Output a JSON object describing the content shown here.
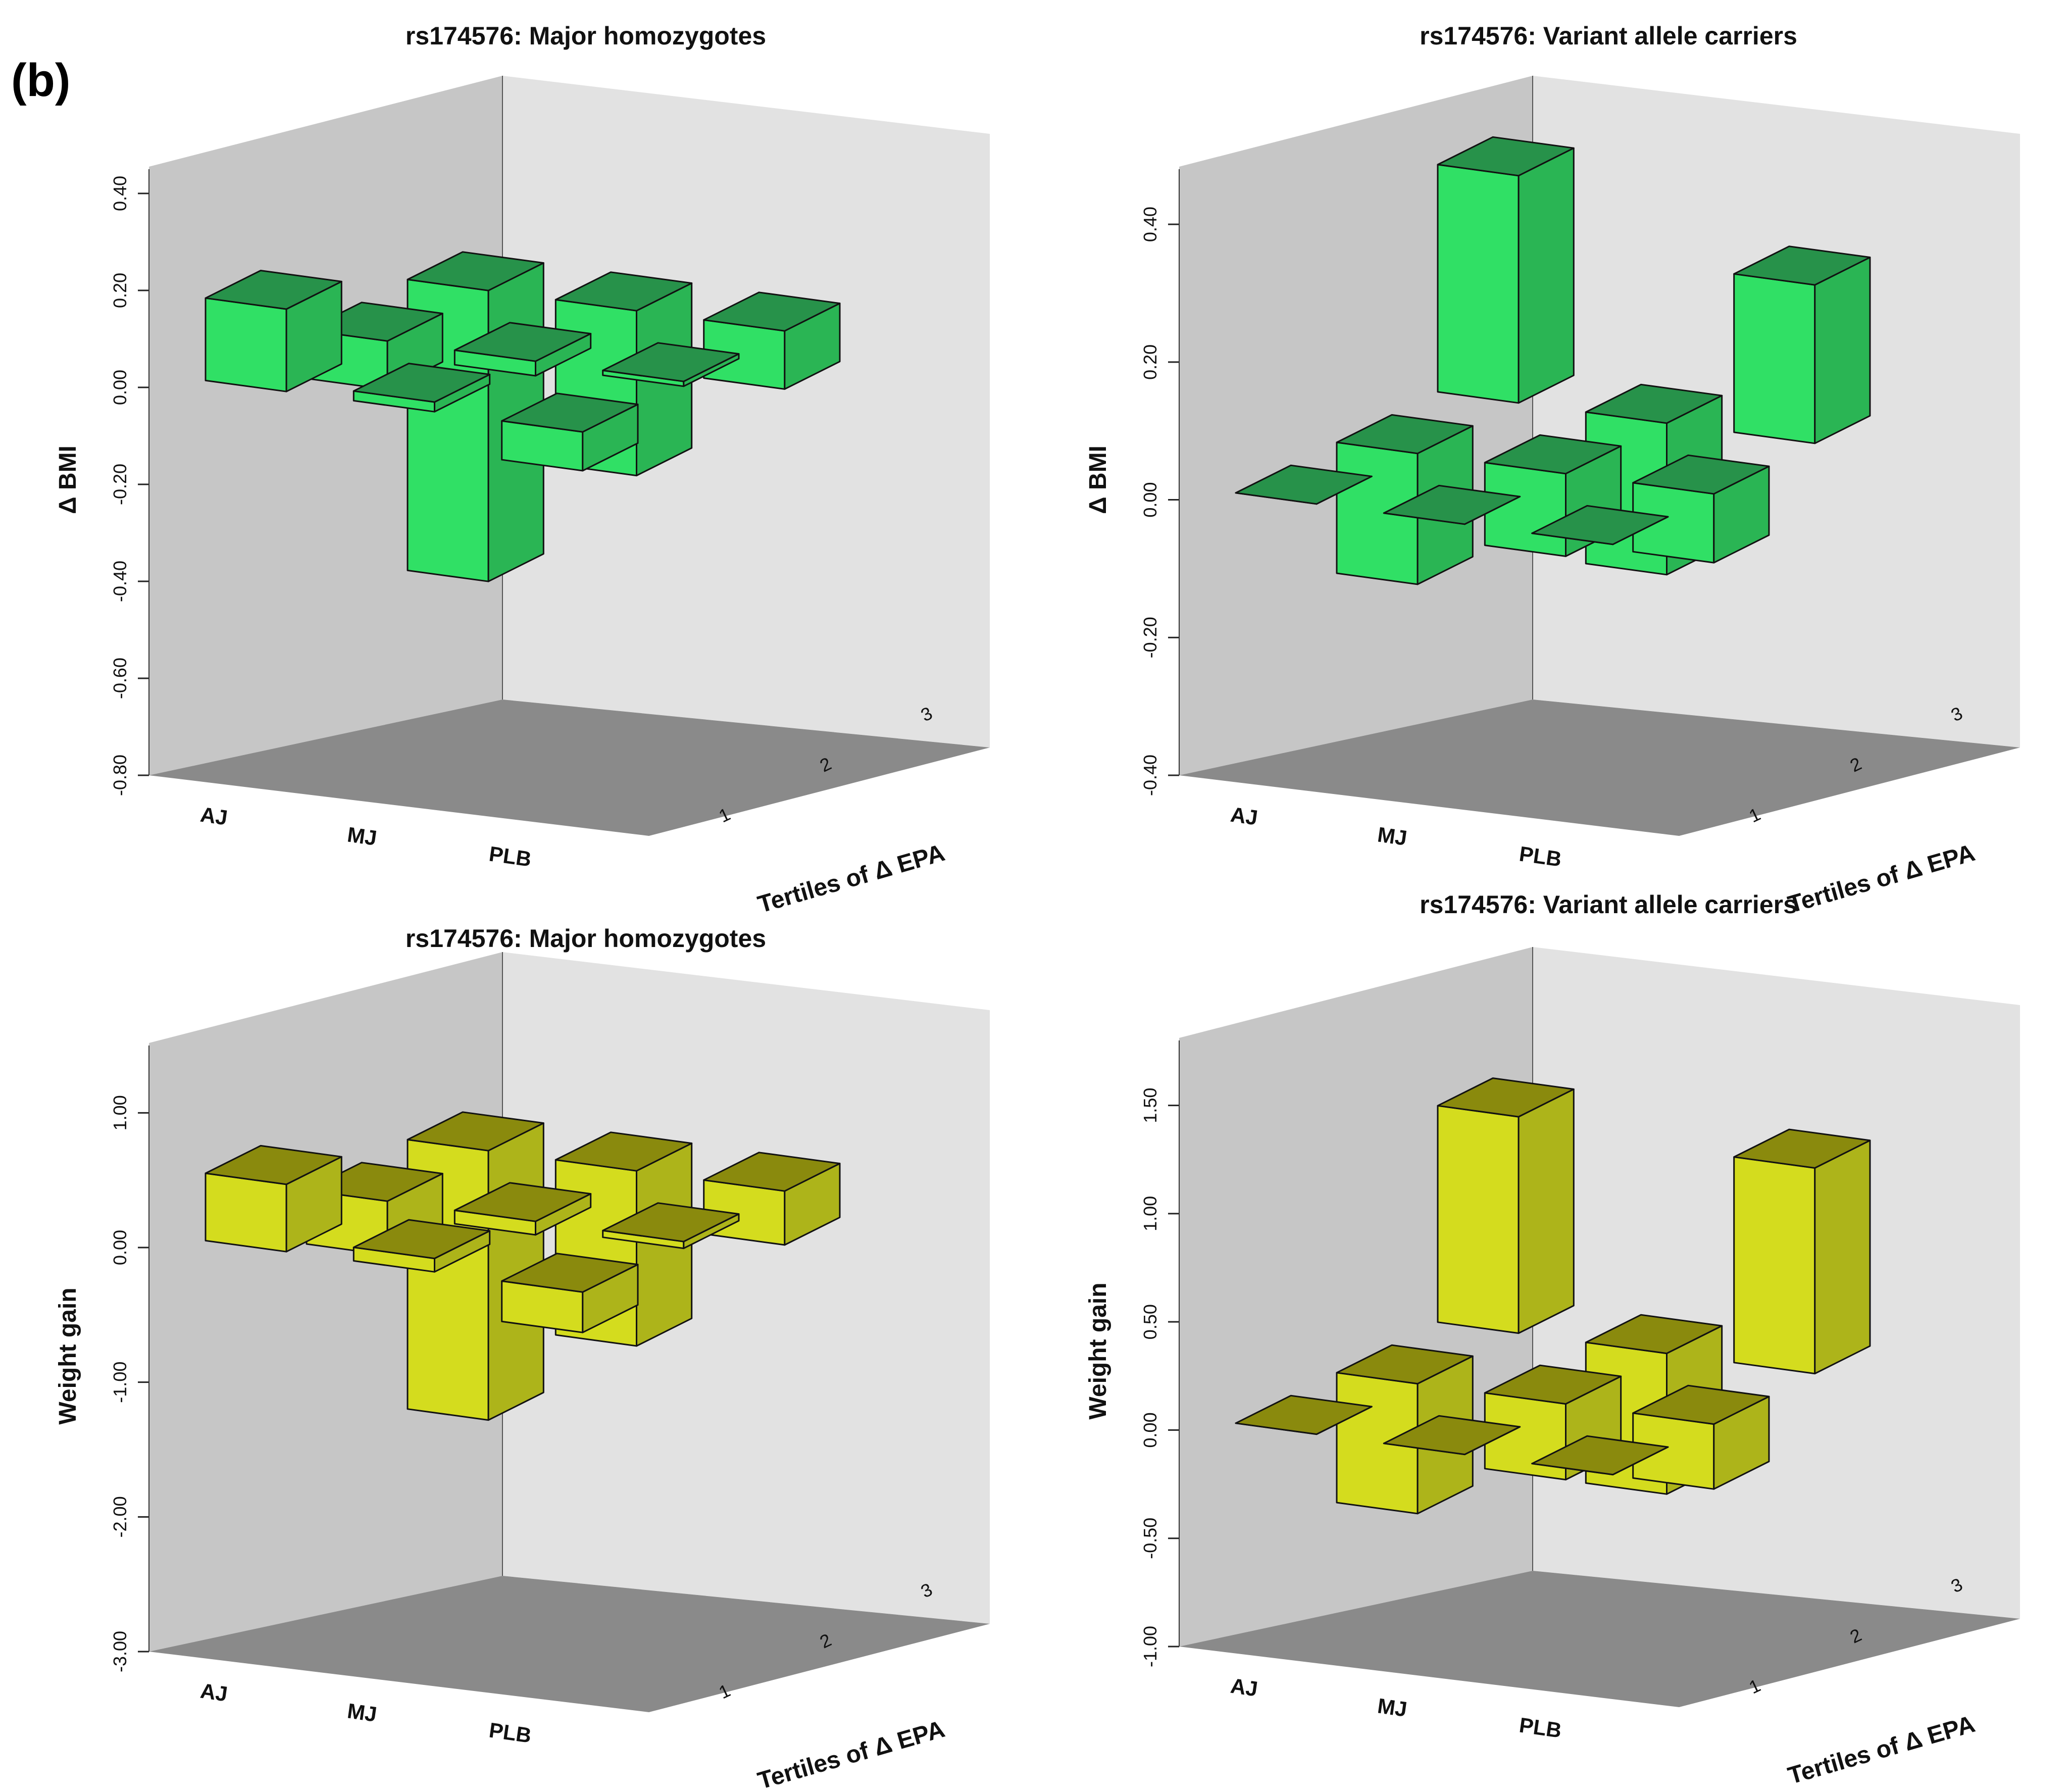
{
  "figure": {
    "panel_label": "(b)"
  },
  "colors": {
    "wall_back": "#c6c6c6",
    "wall_side": "#e2e2e2",
    "floor": "#8a8a8a",
    "green_top": "#27924a",
    "green_front": "#30e065",
    "green_side": "#2ab554",
    "yellow_top": "#8a8a0d",
    "yellow_front": "#d4dc1e",
    "yellow_side": "#adb41a"
  },
  "chart_data": [
    {
      "type": "bar3d",
      "title": "rs174576: Major homozygotes",
      "ylabel": "Δ BMI",
      "xlabel": "",
      "zlabel": "Tertiles of Δ EPA",
      "categories": [
        "AJ",
        "MJ",
        "PLB"
      ],
      "tertiles": [
        "1",
        "2",
        "3"
      ],
      "ylim": [
        -0.8,
        0.45
      ],
      "yticks": [
        -0.8,
        -0.6,
        -0.4,
        -0.2,
        0.0,
        0.2,
        0.4
      ],
      "tick_labels": [
        "-0.80",
        "-0.60",
        "-0.40",
        "-0.20",
        "0.00",
        "0.20",
        "0.40"
      ],
      "values": [
        [
          0.17,
          -0.1,
          -0.6
        ],
        [
          0.02,
          -0.03,
          -0.34
        ],
        [
          -0.08,
          -0.01,
          -0.12
        ]
      ],
      "color": "green"
    },
    {
      "type": "bar3d",
      "title": "rs174576: Variant allele carriers",
      "ylabel": "Δ BMI",
      "xlabel": "",
      "zlabel": "Tertiles of Δ EPA",
      "categories": [
        "AJ",
        "MJ",
        "PLB"
      ],
      "tertiles": [
        "1",
        "2",
        "3"
      ],
      "ylim": [
        -0.4,
        0.48
      ],
      "yticks": [
        -0.4,
        -0.2,
        0.0,
        0.2,
        0.4
      ],
      "tick_labels": [
        "-0.40",
        "-0.20",
        "0.00",
        "0.20",
        "0.40"
      ],
      "values": [
        [
          0.0,
          -0.19,
          0.33
        ],
        [
          0.0,
          -0.12,
          -0.22
        ],
        [
          0.0,
          -0.1,
          0.23
        ]
      ],
      "color": "green"
    },
    {
      "type": "bar3d",
      "title": "rs174576: Major homozygotes",
      "ylabel": "Weight gain",
      "xlabel": "",
      "zlabel": "Tertiles of Δ EPA",
      "categories": [
        "AJ",
        "MJ",
        "PLB"
      ],
      "tertiles": [
        "1",
        "2",
        "3"
      ],
      "ylim": [
        -3.0,
        1.5
      ],
      "yticks": [
        -3.0,
        -2.0,
        -1.0,
        0.0,
        1.0
      ],
      "tick_labels": [
        "-3.00",
        "-2.00",
        "-1.00",
        "0.00",
        "1.00"
      ],
      "values": [
        [
          0.5,
          -0.4,
          -2.0
        ],
        [
          0.1,
          -0.1,
          -1.3
        ],
        [
          -0.3,
          -0.05,
          -0.4
        ]
      ],
      "color": "yellow"
    },
    {
      "type": "bar3d",
      "title": "rs174576: Variant allele carriers",
      "ylabel": "Weight gain",
      "xlabel": "",
      "zlabel": "Tertiles of Δ EPA",
      "categories": [
        "AJ",
        "MJ",
        "PLB"
      ],
      "tertiles": [
        "1",
        "2",
        "3"
      ],
      "ylim": [
        -1.0,
        1.8
      ],
      "yticks": [
        -1.0,
        -0.5,
        0.0,
        0.5,
        1.0,
        1.5
      ],
      "tick_labels": [
        "-1.00",
        "-0.50",
        "0.00",
        "0.50",
        "1.00",
        "1.50"
      ],
      "values": [
        [
          0.0,
          -0.6,
          1.0
        ],
        [
          0.0,
          -0.35,
          -0.65
        ],
        [
          0.0,
          -0.3,
          0.95
        ]
      ],
      "color": "yellow"
    }
  ]
}
